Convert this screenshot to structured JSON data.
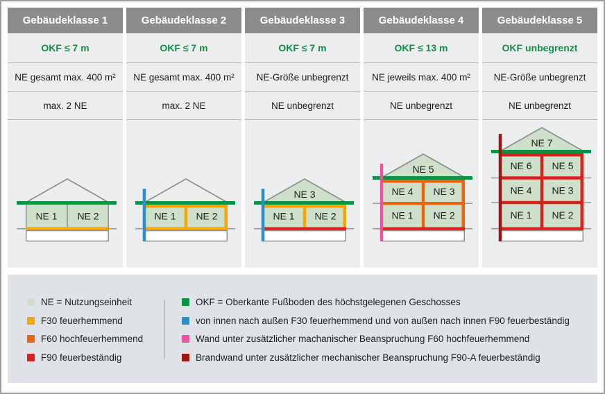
{
  "palette": {
    "green": "#0a9245",
    "light_green": "#cfe0ca",
    "orange": "#f7a600",
    "dark_orange": "#e9650e",
    "red": "#d9221c",
    "blue": "#2e8fc8",
    "pink": "#ea559f",
    "dark_red": "#9d1712",
    "header_bg": "#8c8c8e",
    "panel_bg": "#ecedef",
    "legend_bg": "#dfe3e8",
    "gray_line": "#98989a",
    "wall_gray": "#8f9092",
    "green_text": "#0e9044"
  },
  "columns": [
    {
      "title": "Gebäudeklasse 1",
      "okf": "OKF ≤ 7 m",
      "ne_size": "NE gesamt max. 400 m²",
      "ne_count": "max. 2 NE"
    },
    {
      "title": "Gebäudeklasse 2",
      "okf": "OKF ≤ 7 m",
      "ne_size": "NE gesamt max. 400 m²",
      "ne_count": "max. 2 NE"
    },
    {
      "title": "Gebäudeklasse 3",
      "okf": "OKF ≤ 7 m",
      "ne_size": "NE-Größe unbegrenzt",
      "ne_count": "NE unbegrenzt"
    },
    {
      "title": "Gebäudeklasse 4",
      "okf": "OKF ≤ 13 m",
      "ne_size": "NE jeweils max. 400 m²",
      "ne_count": "NE unbegrenzt"
    },
    {
      "title": "Gebäudeklasse 5",
      "okf": "OKF unbegrenzt",
      "ne_size": "NE-Größe unbegrenzt",
      "ne_count": "NE unbegrenzt"
    }
  ],
  "houses": [
    {
      "class": 1,
      "floors": [
        [
          "NE 1",
          "NE 2"
        ]
      ],
      "attic_label": null,
      "roof_filled": false,
      "border": "gray",
      "bottom_bar": "orange",
      "left_wall": null
    },
    {
      "class": 2,
      "floors": [
        [
          "NE 1",
          "NE 2"
        ]
      ],
      "attic_label": null,
      "roof_filled": false,
      "border": "orange",
      "bottom_bar": "orange",
      "left_wall": "blue"
    },
    {
      "class": 3,
      "floors": [
        [
          "NE 1",
          "NE 2"
        ]
      ],
      "attic_label": "NE 3",
      "roof_filled": true,
      "border": "orange",
      "bottom_bar": "red",
      "left_wall": "blue"
    },
    {
      "class": 4,
      "floors": [
        [
          "NE 4",
          "NE 3"
        ],
        [
          "NE 1",
          "NE 2"
        ]
      ],
      "attic_label": "NE 5",
      "roof_filled": true,
      "border": "dark_orange",
      "bottom_bar": "red",
      "left_wall": "pink"
    },
    {
      "class": 5,
      "floors": [
        [
          "NE 6",
          "NE 5"
        ],
        [
          "NE 4",
          "NE 3"
        ],
        [
          "NE 1",
          "NE 2"
        ]
      ],
      "attic_label": "NE 7",
      "roof_filled": true,
      "border": "red",
      "bottom_bar": "red",
      "left_wall": "dark_red"
    }
  ],
  "legend": {
    "left": [
      {
        "label": "NE = Nutzungseinheit",
        "color": "#cfe0ca"
      },
      {
        "label": "F30 feuerhemmend",
        "color": "#f7a600"
      },
      {
        "label": "F60 hochfeuerhemmend",
        "color": "#e9650e"
      },
      {
        "label": "F90 feuerbeständig",
        "color": "#d9221c"
      }
    ],
    "right": [
      {
        "label": "OKF = Oberkante Fußboden des höchstgelegenen Geschosses",
        "color": "#0a9245"
      },
      {
        "label": "von innen nach außen F30 feuerhemmend und von außen nach innen F90 feuerbeständig",
        "color": "#2e8fc8"
      },
      {
        "label": "Wand unter zusätzlicher machanischer Beanspruchung F60 hochfeuerhemmend",
        "color": "#ea559f"
      },
      {
        "label": "Brandwand unter zusätzlicher mechanischer Beanspruchung F90-A feuerbeständig",
        "color": "#9d1712"
      }
    ]
  }
}
